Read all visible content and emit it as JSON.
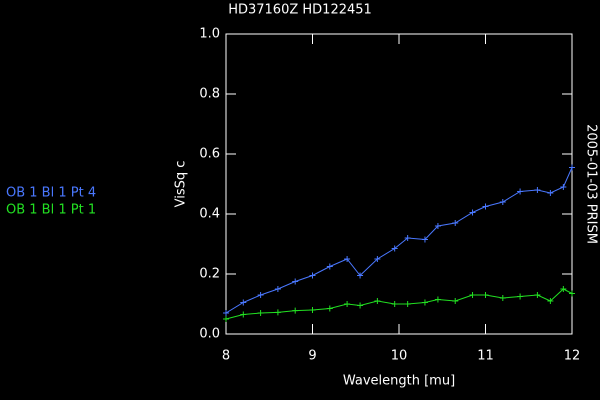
{
  "chart_data": {
    "type": "line",
    "title": "HD37160Z HD122451",
    "side_label": "2005-01-03 PRISM",
    "xlabel": "Wavelength [mu]",
    "ylabel": "VisSq c",
    "x": [
      8.0,
      8.2,
      8.4,
      8.6,
      8.8,
      9.0,
      9.2,
      9.4,
      9.55,
      9.75,
      9.95,
      10.1,
      10.3,
      10.45,
      10.65,
      10.85,
      11.0,
      11.2,
      11.4,
      11.6,
      11.75,
      11.9,
      12.0
    ],
    "series": [
      {
        "name": "OB 1 Bl 1 Pt 4",
        "color": "#4a78ff",
        "values": [
          0.07,
          0.105,
          0.13,
          0.15,
          0.175,
          0.195,
          0.225,
          0.25,
          0.195,
          0.25,
          0.285,
          0.32,
          0.315,
          0.36,
          0.37,
          0.405,
          0.425,
          0.44,
          0.475,
          0.48,
          0.47,
          0.49,
          0.555
        ]
      },
      {
        "name": "OB 1 Bl 1 Pt 1",
        "color": "#22e022",
        "values": [
          0.05,
          0.065,
          0.07,
          0.072,
          0.078,
          0.08,
          0.085,
          0.1,
          0.095,
          0.11,
          0.1,
          0.1,
          0.105,
          0.115,
          0.11,
          0.13,
          0.13,
          0.12,
          0.125,
          0.13,
          0.11,
          0.15,
          0.135
        ]
      }
    ],
    "xlim": [
      8,
      12
    ],
    "xticks": [
      8,
      9,
      10,
      11,
      12
    ],
    "ylim": [
      0,
      1
    ],
    "yticks": [
      {
        "value": 0,
        "label": "0.0"
      },
      {
        "value": 0.2,
        "label": "0.2"
      },
      {
        "value": 0.4,
        "label": "0.4"
      },
      {
        "value": 0.6,
        "label": "0.6"
      },
      {
        "value": 0.8,
        "label": "0.8"
      },
      {
        "value": 1,
        "label": "1.0"
      }
    ]
  }
}
